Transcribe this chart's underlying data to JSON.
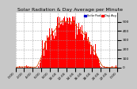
{
  "title": "Solar Radiation & Day Average per Minute",
  "bg_color": "#c8c8c8",
  "plot_bg_color": "#ffffff",
  "grid_color": "#999999",
  "fill_color": "#ff0000",
  "line_color": "#cc0000",
  "avg_line_color": "#dd4400",
  "legend_solar": "Solar Rad",
  "legend_avg": "Day Avg",
  "legend_solar_color": "#0000cc",
  "legend_avg_color": "#ff0000",
  "ylim": [
    0,
    600
  ],
  "yticks": [
    0,
    100,
    200,
    300,
    400,
    500
  ],
  "num_points": 480,
  "x_labels": [
    "0:00",
    "2:00",
    "4:00",
    "6:00",
    "8:00",
    "10:00",
    "12:00",
    "14:00",
    "16:00",
    "18:00",
    "20:00",
    "22:00",
    "0:00"
  ],
  "title_fontsize": 4.5,
  "tick_fontsize": 3.2,
  "seed": 17
}
